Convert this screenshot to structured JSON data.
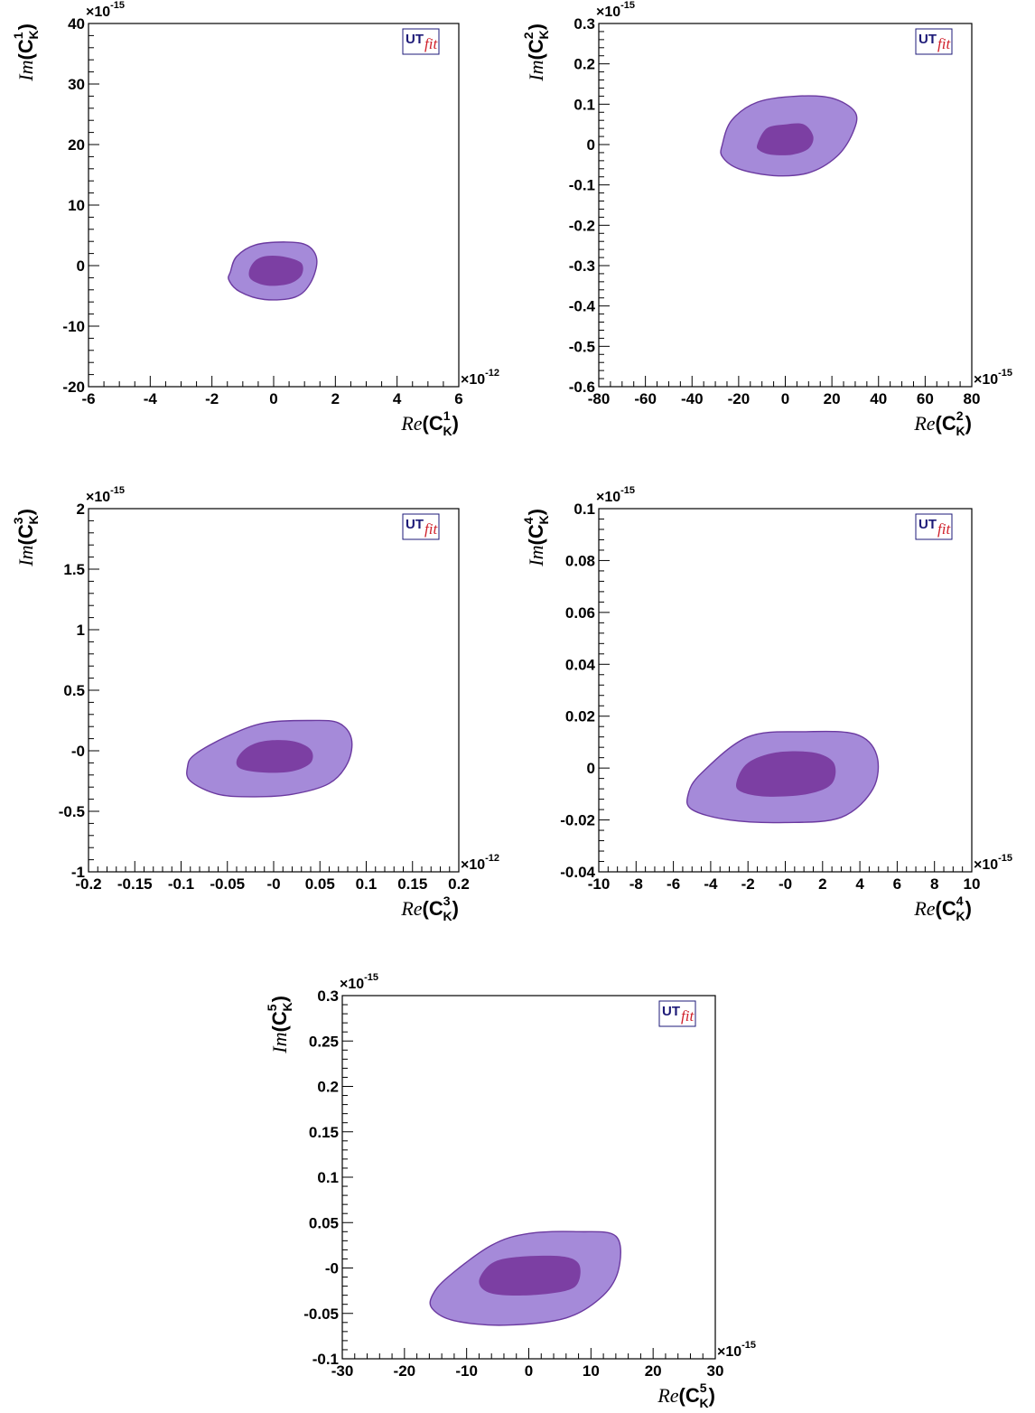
{
  "colors": {
    "outer_region": "#a58ad9",
    "inner_region": "#7c3fa3",
    "contour_stroke": "#6b3aa0",
    "logo_ut": "#1d1a78",
    "logo_fit": "#d01f2a"
  },
  "logo": {
    "left": "UT",
    "right": "fit"
  },
  "chart_data": [
    {
      "type": "contour",
      "xlabel_prefix": "Re",
      "ylabel_prefix": "Im",
      "label_base": "C",
      "label_sub": "K",
      "label_sup": "1",
      "xlim": [
        -6,
        6
      ],
      "ylim": [
        -20,
        40
      ],
      "x_exponent": "×10",
      "x_exponent_power": "-12",
      "y_exponent": "×10",
      "y_exponent_power": "-15",
      "x_ticks": [
        -6,
        -4,
        -2,
        0,
        2,
        4,
        6
      ],
      "x_minor": 0.5,
      "y_ticks": [
        -20,
        -10,
        0,
        10,
        20,
        30,
        40
      ],
      "y_minor": 2,
      "x_tick_labels": [
        "-6",
        "-4",
        "-2",
        "0",
        "2",
        "4",
        "6"
      ],
      "y_tick_labels": [
        "-20",
        "-10",
        "0",
        "10",
        "20",
        "30",
        "40"
      ],
      "regions": {
        "outer": [
          [
            -1.4,
            -1.0
          ],
          [
            -1.2,
            1.5
          ],
          [
            -0.6,
            3.4
          ],
          [
            0.4,
            3.9
          ],
          [
            1.1,
            3.3
          ],
          [
            1.4,
            0.9
          ],
          [
            1.2,
            -2.8
          ],
          [
            0.7,
            -5.2
          ],
          [
            -0.3,
            -5.6
          ],
          [
            -1.1,
            -4.3
          ],
          [
            -1.45,
            -2.4
          ]
        ],
        "inner": [
          [
            -0.8,
            -1.0
          ],
          [
            -0.6,
            0.8
          ],
          [
            -0.2,
            1.6
          ],
          [
            0.4,
            1.4
          ],
          [
            0.9,
            0.4
          ],
          [
            0.9,
            -1.6
          ],
          [
            0.5,
            -3.0
          ],
          [
            -0.2,
            -3.3
          ],
          [
            -0.7,
            -2.4
          ]
        ]
      }
    },
    {
      "type": "contour",
      "xlabel_prefix": "Re",
      "ylabel_prefix": "Im",
      "label_base": "C",
      "label_sub": "K",
      "label_sup": "2",
      "xlim": [
        -80,
        80
      ],
      "ylim": [
        -0.6,
        0.3
      ],
      "x_exponent": "×10",
      "x_exponent_power": "-15",
      "y_exponent": "×10",
      "y_exponent_power": "-15",
      "x_ticks": [
        -80,
        -60,
        -40,
        -20,
        0,
        20,
        40,
        60,
        80
      ],
      "x_minor": 5,
      "y_ticks": [
        -0.6,
        -0.5,
        -0.4,
        -0.3,
        -0.2,
        -0.1,
        0,
        0.1,
        0.2,
        0.3
      ],
      "y_minor": 0.02,
      "x_tick_labels": [
        "-80",
        "-60",
        "-40",
        "-20",
        "0",
        "20",
        "40",
        "60",
        "80"
      ],
      "y_tick_labels": [
        "-0.6",
        "-0.5",
        "-0.4",
        "-0.3",
        "-0.2",
        "-0.1",
        "0",
        "0.1",
        "0.2",
        "0.3"
      ],
      "regions": {
        "outer": [
          [
            -27,
            0.0
          ],
          [
            -23,
            0.06
          ],
          [
            -12,
            0.105
          ],
          [
            5,
            0.12
          ],
          [
            20,
            0.115
          ],
          [
            30,
            0.08
          ],
          [
            29,
            0.03
          ],
          [
            22,
            -0.03
          ],
          [
            10,
            -0.07
          ],
          [
            -5,
            -0.077
          ],
          [
            -20,
            -0.06
          ],
          [
            -27,
            -0.03
          ]
        ],
        "inner": [
          [
            -12,
            0.0
          ],
          [
            -8,
            0.04
          ],
          [
            0,
            0.05
          ],
          [
            8,
            0.05
          ],
          [
            12,
            0.02
          ],
          [
            10,
            -0.01
          ],
          [
            3,
            -0.025
          ],
          [
            -6,
            -0.025
          ],
          [
            -11,
            -0.015
          ]
        ]
      }
    },
    {
      "type": "contour",
      "xlabel_prefix": "Re",
      "ylabel_prefix": "Im",
      "label_base": "C",
      "label_sub": "K",
      "label_sup": "3",
      "xlim": [
        -0.2,
        0.2
      ],
      "ylim": [
        -1,
        2
      ],
      "x_exponent": "×10",
      "x_exponent_power": "-12",
      "y_exponent": "×10",
      "y_exponent_power": "-15",
      "x_ticks": [
        -0.2,
        -0.15,
        -0.1,
        -0.05,
        0,
        0.05,
        0.1,
        0.15,
        0.2
      ],
      "x_minor": 0.01,
      "y_ticks": [
        -1,
        -0.5,
        0,
        0.5,
        1,
        1.5,
        2
      ],
      "y_minor": 0.1,
      "x_tick_labels": [
        "-0.2",
        "-0.15",
        "-0.1",
        "-0.05",
        "-0",
        "0.05",
        "0.1",
        "0.15",
        "0.2"
      ],
      "y_tick_labels": [
        "-1",
        "-0.5",
        "-0",
        "0.5",
        "1",
        "1.5",
        "2"
      ],
      "regions": {
        "outer": [
          [
            -0.093,
            -0.13
          ],
          [
            -0.085,
            -0.03
          ],
          [
            -0.05,
            0.12
          ],
          [
            -0.01,
            0.23
          ],
          [
            0.04,
            0.25
          ],
          [
            0.07,
            0.23
          ],
          [
            0.084,
            0.1
          ],
          [
            0.08,
            -0.1
          ],
          [
            0.06,
            -0.27
          ],
          [
            0.02,
            -0.36
          ],
          [
            -0.02,
            -0.38
          ],
          [
            -0.06,
            -0.36
          ],
          [
            -0.09,
            -0.25
          ]
        ],
        "inner": [
          [
            -0.04,
            -0.08
          ],
          [
            -0.03,
            0.02
          ],
          [
            -0.01,
            0.08
          ],
          [
            0.02,
            0.08
          ],
          [
            0.04,
            0.01
          ],
          [
            0.04,
            -0.1
          ],
          [
            0.02,
            -0.17
          ],
          [
            -0.01,
            -0.18
          ],
          [
            -0.035,
            -0.15
          ]
        ]
      }
    },
    {
      "type": "contour",
      "xlabel_prefix": "Re",
      "ylabel_prefix": "Im",
      "label_base": "C",
      "label_sub": "K",
      "label_sup": "4",
      "xlim": [
        -10,
        10
      ],
      "ylim": [
        -0.04,
        0.1
      ],
      "x_exponent": "×10",
      "x_exponent_power": "-15",
      "y_exponent": "×10",
      "y_exponent_power": "-15",
      "x_ticks": [
        -10,
        -8,
        -6,
        -4,
        -2,
        0,
        2,
        4,
        6,
        8,
        10
      ],
      "x_minor": 0.5,
      "y_ticks": [
        -0.04,
        -0.02,
        0,
        0.02,
        0.04,
        0.06,
        0.08,
        0.1
      ],
      "y_minor": 0.004,
      "x_tick_labels": [
        "-10",
        "-8",
        "-6",
        "-4",
        "-2",
        "-0",
        "2",
        "4",
        "6",
        "8",
        "10"
      ],
      "y_tick_labels": [
        "-0.04",
        "-0.02",
        "0",
        "0.02",
        "0.04",
        "0.06",
        "0.08",
        "0.1"
      ],
      "regions": {
        "outer": [
          [
            -5.2,
            -0.01
          ],
          [
            -4.5,
            -0.002
          ],
          [
            -2.0,
            0.012
          ],
          [
            1.0,
            0.014
          ],
          [
            3.8,
            0.013
          ],
          [
            4.9,
            0.005
          ],
          [
            4.7,
            -0.008
          ],
          [
            3.0,
            -0.019
          ],
          [
            0,
            -0.021
          ],
          [
            -3.0,
            -0.02
          ],
          [
            -5.0,
            -0.016
          ]
        ],
        "inner": [
          [
            -2.6,
            -0.005
          ],
          [
            -2.0,
            0.002
          ],
          [
            -0.5,
            0.006
          ],
          [
            1.5,
            0.006
          ],
          [
            2.6,
            0.002
          ],
          [
            2.5,
            -0.006
          ],
          [
            1.2,
            -0.01
          ],
          [
            -1.0,
            -0.011
          ],
          [
            -2.4,
            -0.009
          ]
        ]
      }
    },
    {
      "type": "contour",
      "xlabel_prefix": "Re",
      "ylabel_prefix": "Im",
      "label_base": "C",
      "label_sub": "K",
      "label_sup": "5",
      "xlim": [
        -30,
        30
      ],
      "ylim": [
        -0.1,
        0.3
      ],
      "x_exponent": "×10",
      "x_exponent_power": "-15",
      "y_exponent": "×10",
      "y_exponent_power": "-15",
      "x_ticks": [
        -30,
        -20,
        -10,
        0,
        10,
        20,
        30
      ],
      "x_minor": 2,
      "y_ticks": [
        -0.1,
        -0.05,
        0,
        0.05,
        0.1,
        0.15,
        0.2,
        0.25,
        0.3
      ],
      "y_minor": 0.01,
      "x_tick_labels": [
        "-30",
        "-20",
        "-10",
        "0",
        "10",
        "20",
        "30"
      ],
      "y_tick_labels": [
        "-0.1",
        "-0.05",
        "-0",
        "0.05",
        "0.1",
        "0.15",
        "0.2",
        "0.25",
        "0.3"
      ],
      "regions": {
        "outer": [
          [
            -15.5,
            -0.03
          ],
          [
            -13,
            -0.01
          ],
          [
            -6,
            0.025
          ],
          [
            0,
            0.038
          ],
          [
            8,
            0.04
          ],
          [
            14,
            0.035
          ],
          [
            14.5,
            0.0
          ],
          [
            12,
            -0.03
          ],
          [
            6,
            -0.055
          ],
          [
            -4,
            -0.063
          ],
          [
            -12,
            -0.058
          ],
          [
            -15.5,
            -0.045
          ]
        ],
        "inner": [
          [
            -8,
            -0.015
          ],
          [
            -6,
            0.005
          ],
          [
            -2,
            0.012
          ],
          [
            5,
            0.013
          ],
          [
            8,
            0.005
          ],
          [
            8,
            -0.015
          ],
          [
            6,
            -0.025
          ],
          [
            0,
            -0.03
          ],
          [
            -6,
            -0.028
          ]
        ]
      }
    }
  ]
}
